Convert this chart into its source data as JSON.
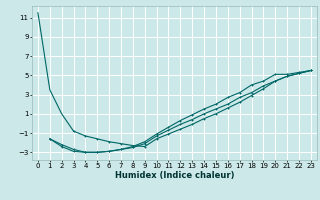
{
  "title": "",
  "xlabel": "Humidex (Indice chaleur)",
  "ylabel": "",
  "bg_color": "#cce8e8",
  "grid_color": "#ffffff",
  "line_color": "#006666",
  "xlim": [
    -0.5,
    23.5
  ],
  "ylim": [
    -3.8,
    12.2
  ],
  "xticks": [
    0,
    1,
    2,
    3,
    4,
    5,
    6,
    7,
    8,
    9,
    10,
    11,
    12,
    13,
    14,
    15,
    16,
    17,
    18,
    19,
    20,
    21,
    22,
    23
  ],
  "yticks": [
    -3,
    -1,
    1,
    3,
    5,
    7,
    9,
    11
  ],
  "line1_x": [
    0,
    1,
    2,
    3,
    4,
    5,
    6,
    7,
    8,
    9,
    10,
    11,
    12,
    13,
    14,
    15,
    16,
    17,
    18,
    19,
    20,
    21,
    22,
    23
  ],
  "line1_y": [
    11.5,
    3.5,
    1.0,
    -0.8,
    -1.3,
    -1.6,
    -1.9,
    -2.1,
    -2.3,
    -2.4,
    -1.6,
    -1.1,
    -0.6,
    -0.1,
    0.5,
    1.0,
    1.6,
    2.2,
    2.9,
    3.6,
    4.4,
    4.9,
    5.2,
    5.5
  ],
  "line2_x": [
    1,
    2,
    3,
    4,
    5,
    6,
    7,
    8,
    9,
    10,
    11,
    12,
    13,
    14,
    15,
    16,
    17,
    18,
    19,
    20,
    21,
    22,
    23
  ],
  "line2_y": [
    -1.6,
    -2.4,
    -2.9,
    -3.0,
    -3.0,
    -2.9,
    -2.7,
    -2.5,
    -2.1,
    -1.3,
    -0.7,
    -0.1,
    0.4,
    1.0,
    1.5,
    2.0,
    2.7,
    3.2,
    3.9,
    4.4,
    4.9,
    5.2,
    5.5
  ],
  "line3_x": [
    1,
    2,
    3,
    4,
    5,
    6,
    7,
    8,
    9,
    10,
    11,
    12,
    13,
    14,
    15,
    16,
    17,
    18,
    19,
    20,
    21,
    22,
    23
  ],
  "line3_y": [
    -1.6,
    -2.2,
    -2.7,
    -3.0,
    -3.0,
    -2.9,
    -2.7,
    -2.4,
    -1.9,
    -1.1,
    -0.4,
    0.3,
    0.9,
    1.5,
    2.0,
    2.7,
    3.2,
    4.0,
    4.4,
    5.1,
    5.1,
    5.3,
    5.5
  ],
  "xlabel_fontsize": 6,
  "tick_fontsize": 5,
  "lw": 0.8,
  "marker_size": 2.0,
  "marker_lw": 0.7
}
